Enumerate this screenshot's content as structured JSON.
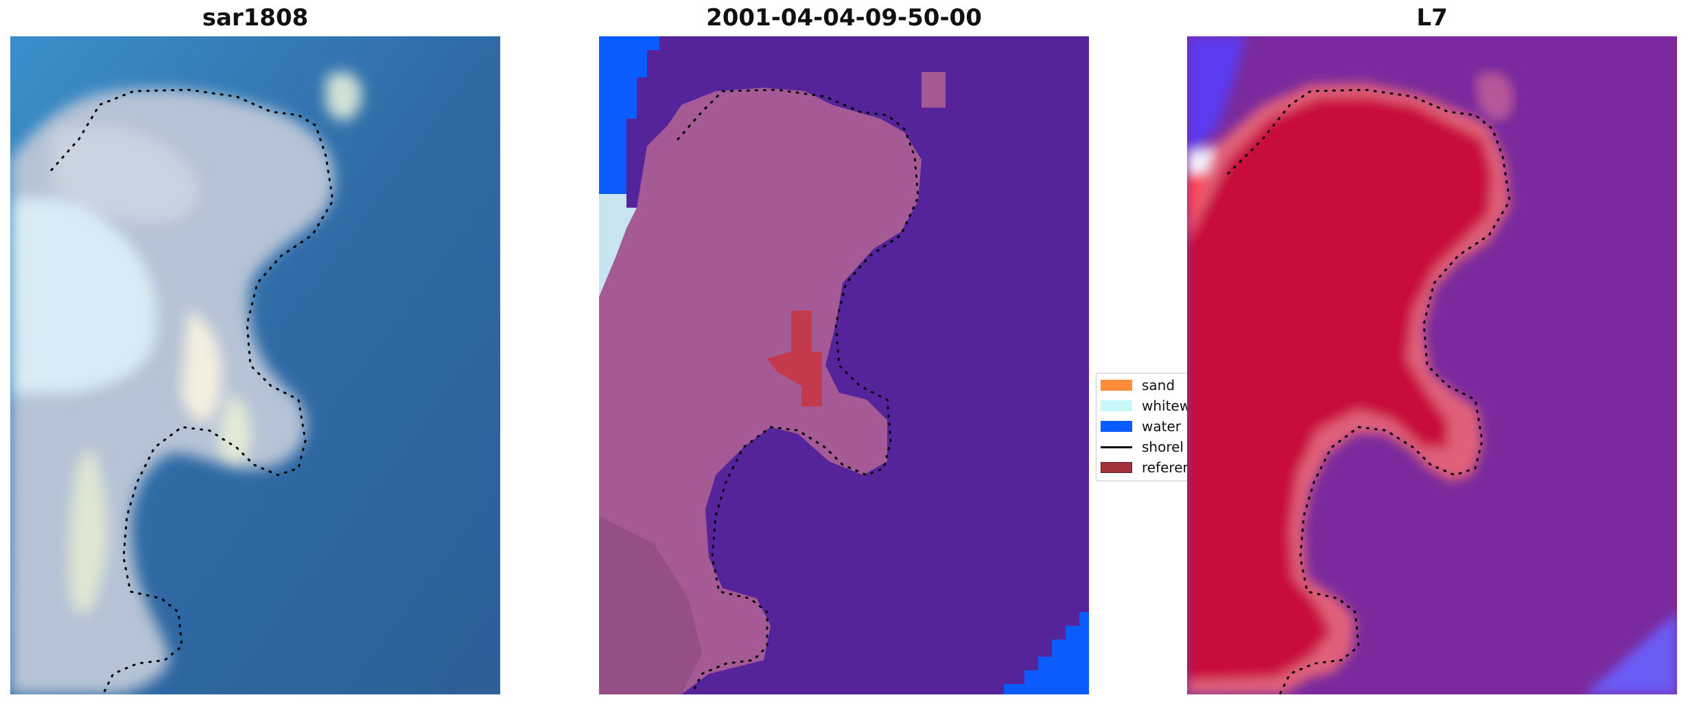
{
  "panels": [
    {
      "id": "rgb",
      "title": "sar1808"
    },
    {
      "id": "class",
      "title": "2001-04-04-09-50-00"
    },
    {
      "id": "index",
      "title": "L7"
    }
  ],
  "legend": {
    "items": [
      {
        "label": "sand",
        "color": "#ff8c3a",
        "type": "patch"
      },
      {
        "label": "whitew",
        "color": "#c8f7f7",
        "type": "patch"
      },
      {
        "label": "water",
        "color": "#0a5cff",
        "type": "patch"
      },
      {
        "label": "shorel",
        "color": "#000000",
        "type": "line"
      },
      {
        "label": "referen",
        "color": "#a3323a",
        "type": "patch"
      }
    ]
  },
  "colors": {
    "water_rgb": "#2f6aa5",
    "sand_rgb": "#cfd9e3",
    "class_water": "#55249a",
    "class_land": "#a55a96",
    "class_blue": "#0a5cff",
    "class_ref": "#c33a4c",
    "index_water": "#7a2a9c",
    "index_land": "#c8103c",
    "index_edge": "#e0607a"
  }
}
